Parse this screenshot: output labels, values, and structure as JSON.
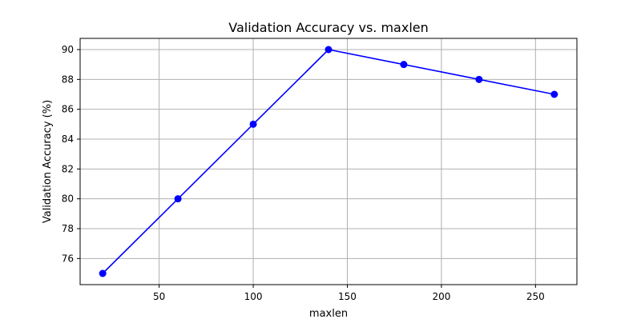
{
  "chart_data": {
    "type": "line",
    "title": "Validation Accuracy vs. maxlen",
    "xlabel": "maxlen",
    "ylabel": "Validation Accuracy (%)",
    "x": [
      20,
      60,
      100,
      140,
      180,
      220,
      260
    ],
    "series": [
      {
        "values": [
          75,
          80,
          85,
          90,
          89,
          88,
          87
        ],
        "color": "#0000ff",
        "marker": "circle"
      }
    ],
    "xlim": [
      8,
      272
    ],
    "ylim": [
      74.25,
      90.75
    ],
    "xticks": [
      50,
      100,
      150,
      200,
      250
    ],
    "yticks": [
      76,
      78,
      80,
      82,
      84,
      86,
      88,
      90
    ],
    "grid": true,
    "legend": "none"
  }
}
